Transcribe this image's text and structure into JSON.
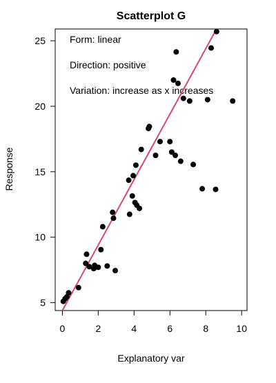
{
  "chart_data": {
    "type": "scatter",
    "title": "Scatterplot G",
    "xlabel": "Explanatory var",
    "ylabel": "Response",
    "xlim": [
      -0.4,
      10.3
    ],
    "ylim": [
      4.4,
      25.9
    ],
    "x_ticks": [
      0,
      2,
      4,
      6,
      8,
      10
    ],
    "y_ticks": [
      5,
      10,
      15,
      20,
      25
    ],
    "grid": false,
    "annotations": [
      "Form: linear",
      "Direction: positive",
      "Variation: increase as x increases"
    ],
    "point_color": "#000000",
    "line_color": "#d6476b",
    "fit_line": {
      "intercept": 4.4,
      "slope": 2.5
    },
    "points": [
      {
        "x": 0.05,
        "y": 5.1
      },
      {
        "x": 0.15,
        "y": 5.3
      },
      {
        "x": 0.25,
        "y": 5.45
      },
      {
        "x": 0.35,
        "y": 5.75
      },
      {
        "x": 0.9,
        "y": 6.15
      },
      {
        "x": 1.3,
        "y": 8.0
      },
      {
        "x": 1.35,
        "y": 8.7
      },
      {
        "x": 1.5,
        "y": 7.75
      },
      {
        "x": 1.75,
        "y": 7.6
      },
      {
        "x": 1.8,
        "y": 7.85
      },
      {
        "x": 2.0,
        "y": 7.7
      },
      {
        "x": 2.15,
        "y": 9.05
      },
      {
        "x": 2.25,
        "y": 10.8
      },
      {
        "x": 2.5,
        "y": 7.8
      },
      {
        "x": 2.8,
        "y": 11.9
      },
      {
        "x": 2.85,
        "y": 11.45
      },
      {
        "x": 2.95,
        "y": 7.45
      },
      {
        "x": 3.7,
        "y": 14.35
      },
      {
        "x": 3.75,
        "y": 11.75
      },
      {
        "x": 3.9,
        "y": 13.15
      },
      {
        "x": 3.95,
        "y": 14.7
      },
      {
        "x": 4.05,
        "y": 12.65
      },
      {
        "x": 4.1,
        "y": 15.5
      },
      {
        "x": 4.15,
        "y": 12.45
      },
      {
        "x": 4.3,
        "y": 12.2
      },
      {
        "x": 4.4,
        "y": 16.7
      },
      {
        "x": 4.8,
        "y": 18.3
      },
      {
        "x": 4.85,
        "y": 18.45
      },
      {
        "x": 5.2,
        "y": 16.25
      },
      {
        "x": 5.45,
        "y": 17.3
      },
      {
        "x": 6.0,
        "y": 17.3
      },
      {
        "x": 6.1,
        "y": 16.5
      },
      {
        "x": 6.2,
        "y": 22.0
      },
      {
        "x": 6.3,
        "y": 16.25
      },
      {
        "x": 6.35,
        "y": 24.15
      },
      {
        "x": 6.45,
        "y": 21.75
      },
      {
        "x": 6.6,
        "y": 15.8
      },
      {
        "x": 6.75,
        "y": 20.6
      },
      {
        "x": 7.1,
        "y": 20.4
      },
      {
        "x": 7.3,
        "y": 15.55
      },
      {
        "x": 7.8,
        "y": 13.7
      },
      {
        "x": 8.1,
        "y": 20.5
      },
      {
        "x": 8.3,
        "y": 24.45
      },
      {
        "x": 8.55,
        "y": 13.65
      },
      {
        "x": 8.6,
        "y": 25.7
      },
      {
        "x": 9.5,
        "y": 20.4
      }
    ]
  }
}
